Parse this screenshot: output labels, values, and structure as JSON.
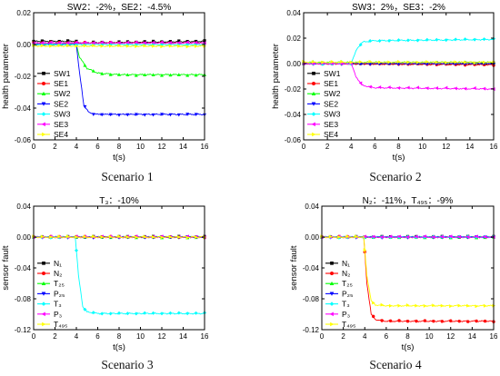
{
  "captions": [
    "Scenario 1",
    "Scenario 2",
    "Scenario 3",
    "Scenario 4"
  ],
  "chart_data": [
    {
      "type": "line",
      "title": "SW2：-2%，SE2：-4.5%",
      "xlabel": "t(s)",
      "ylabel": "health parameter",
      "xlim": [
        0,
        16
      ],
      "ylim": [
        -0.06,
        0.02
      ],
      "xticks": [
        0,
        2,
        4,
        6,
        8,
        10,
        12,
        14,
        16
      ],
      "yticks": [
        0.02,
        0.0,
        -0.02,
        -0.04,
        -0.06
      ],
      "ytick_labels": [
        "0.02",
        "0.00",
        "-0.02",
        "-0.04",
        "-0.06"
      ],
      "grid": false,
      "legend_position": "bottom-left",
      "series": [
        {
          "name": "SW1",
          "color": "#000000",
          "marker": "square",
          "points": [
            [
              0,
              0.002
            ],
            [
              4,
              0.002
            ],
            [
              4.1,
              0.001
            ],
            [
              16,
              0.002
            ]
          ]
        },
        {
          "name": "SE1",
          "color": "#ff0000",
          "marker": "circle",
          "points": [
            [
              0,
              0.001
            ],
            [
              4,
              0.001
            ],
            [
              16,
              0.001
            ]
          ]
        },
        {
          "name": "SW2",
          "color": "#00ff00",
          "marker": "triangle-up",
          "points": [
            [
              0,
              0.0
            ],
            [
              4,
              0.0
            ],
            [
              4.3,
              -0.008
            ],
            [
              5,
              -0.015
            ],
            [
              6,
              -0.018
            ],
            [
              8,
              -0.019
            ],
            [
              16,
              -0.019
            ]
          ]
        },
        {
          "name": "SE2",
          "color": "#0000ff",
          "marker": "triangle-down",
          "points": [
            [
              0,
              0.0
            ],
            [
              4,
              0.0
            ],
            [
              4.3,
              -0.018
            ],
            [
              4.7,
              -0.038
            ],
            [
              5.2,
              -0.043
            ],
            [
              6,
              -0.044
            ],
            [
              16,
              -0.044
            ]
          ]
        },
        {
          "name": "SW3",
          "color": "#00ffff",
          "marker": "diamond",
          "points": [
            [
              0,
              0.0
            ],
            [
              16,
              0.0
            ]
          ]
        },
        {
          "name": "SE3",
          "color": "#ff00ff",
          "marker": "triangle-left",
          "points": [
            [
              0,
              0.001
            ],
            [
              16,
              0.001
            ]
          ]
        },
        {
          "name": "SE4",
          "color": "#ffff00",
          "marker": "triangle-right",
          "points": [
            [
              0,
              -0.001
            ],
            [
              16,
              -0.001
            ]
          ]
        }
      ]
    },
    {
      "type": "line",
      "title": "SW3：2%，SE3：-2%",
      "xlabel": "t(s)",
      "ylabel": "health parameter",
      "xlim": [
        0,
        16
      ],
      "ylim": [
        -0.06,
        0.04
      ],
      "xticks": [
        0,
        2,
        4,
        6,
        8,
        10,
        12,
        14,
        16
      ],
      "yticks": [
        0.04,
        0.02,
        0.0,
        -0.02,
        -0.04,
        -0.06
      ],
      "ytick_labels": [
        "0.04",
        "0.02",
        "0.00",
        "-0.02",
        "-0.04",
        "-0.06"
      ],
      "grid": false,
      "legend_position": "bottom-left",
      "series": [
        {
          "name": "SW1",
          "color": "#000000",
          "marker": "square",
          "points": [
            [
              0,
              0.0
            ],
            [
              16,
              0.0
            ]
          ]
        },
        {
          "name": "SE1",
          "color": "#ff0000",
          "marker": "circle",
          "points": [
            [
              0,
              0.0
            ],
            [
              16,
              -0.001
            ]
          ]
        },
        {
          "name": "SW2",
          "color": "#00ff00",
          "marker": "triangle-up",
          "points": [
            [
              0,
              0.001
            ],
            [
              16,
              0.001
            ]
          ]
        },
        {
          "name": "SE2",
          "color": "#0000ff",
          "marker": "triangle-down",
          "points": [
            [
              0,
              0.0
            ],
            [
              16,
              0.0
            ]
          ]
        },
        {
          "name": "SW3",
          "color": "#00ffff",
          "marker": "diamond",
          "points": [
            [
              0,
              0.0
            ],
            [
              4,
              0.0
            ],
            [
              4.5,
              0.012
            ],
            [
              5,
              0.017
            ],
            [
              6,
              0.018
            ],
            [
              16,
              0.019
            ]
          ]
        },
        {
          "name": "SE3",
          "color": "#ff00ff",
          "marker": "triangle-left",
          "points": [
            [
              0,
              0.0
            ],
            [
              4,
              0.0
            ],
            [
              4.4,
              -0.01
            ],
            [
              4.9,
              -0.017
            ],
            [
              6,
              -0.019
            ],
            [
              16,
              -0.02
            ]
          ]
        },
        {
          "name": "SE4",
          "color": "#ffff00",
          "marker": "triangle-right",
          "points": [
            [
              0,
              0.001
            ],
            [
              16,
              0.001
            ]
          ]
        }
      ]
    },
    {
      "type": "line",
      "title": "T₃：-10%",
      "xlabel": "t(s)",
      "ylabel": "sensor fault",
      "xlim": [
        0,
        16
      ],
      "ylim": [
        -0.12,
        0.04
      ],
      "xticks": [
        0,
        2,
        4,
        6,
        8,
        10,
        12,
        14,
        16
      ],
      "yticks": [
        0.04,
        0.0,
        -0.04,
        -0.08,
        -0.12
      ],
      "ytick_labels": [
        "0.04",
        "0.00",
        "-0.04",
        "-0.08",
        "-0.12"
      ],
      "grid": false,
      "legend_position": "bottom-left",
      "series": [
        {
          "name": "N₁",
          "color": "#000000",
          "marker": "square",
          "points": [
            [
              0,
              0.0
            ],
            [
              16,
              0.0
            ]
          ]
        },
        {
          "name": "N₂",
          "color": "#ff0000",
          "marker": "circle",
          "points": [
            [
              0,
              0.0
            ],
            [
              16,
              0.0
            ]
          ]
        },
        {
          "name": "T₂₅",
          "color": "#00ff00",
          "marker": "triangle-up",
          "points": [
            [
              0,
              0.0
            ],
            [
              16,
              0.0
            ]
          ]
        },
        {
          "name": "P₂₅",
          "color": "#0000ff",
          "marker": "triangle-down",
          "points": [
            [
              0,
              0.0
            ],
            [
              16,
              0.0
            ]
          ]
        },
        {
          "name": "T₃",
          "color": "#00ffff",
          "marker": "diamond",
          "points": [
            [
              0,
              0.0
            ],
            [
              3.9,
              0.0
            ],
            [
              4.2,
              -0.05
            ],
            [
              4.6,
              -0.09
            ],
            [
              5,
              -0.097
            ],
            [
              6,
              -0.099
            ],
            [
              16,
              -0.099
            ]
          ]
        },
        {
          "name": "P₃",
          "color": "#ff00ff",
          "marker": "triangle-left",
          "points": [
            [
              0,
              0.0
            ],
            [
              16,
              0.0
            ]
          ]
        },
        {
          "name": "T₄₉₅",
          "color": "#ffff00",
          "marker": "triangle-right",
          "points": [
            [
              0,
              0.0
            ],
            [
              16,
              0.0
            ]
          ]
        }
      ]
    },
    {
      "type": "line",
      "title": "N₂：-11%，T₄₉₅：-9%",
      "xlabel": "t(s)",
      "ylabel": "sensor fault",
      "xlim": [
        0,
        16
      ],
      "ylim": [
        -0.12,
        0.04
      ],
      "xticks": [
        0,
        2,
        4,
        6,
        8,
        10,
        12,
        14,
        16
      ],
      "yticks": [
        0.04,
        0.0,
        -0.04,
        -0.08,
        -0.12
      ],
      "ytick_labels": [
        "0.04",
        "0.00",
        "-0.04",
        "-0.08",
        "-0.12"
      ],
      "grid": false,
      "legend_position": "bottom-left",
      "series": [
        {
          "name": "N₁",
          "color": "#000000",
          "marker": "square",
          "points": [
            [
              0,
              0.0
            ],
            [
              16,
              0.0
            ]
          ]
        },
        {
          "name": "N₂",
          "color": "#ff0000",
          "marker": "circle",
          "points": [
            [
              0,
              0.0
            ],
            [
              3.9,
              0.0
            ],
            [
              4.2,
              -0.06
            ],
            [
              4.6,
              -0.1
            ],
            [
              5,
              -0.107
            ],
            [
              6,
              -0.109
            ],
            [
              16,
              -0.109
            ]
          ]
        },
        {
          "name": "T₂₅",
          "color": "#00ff00",
          "marker": "triangle-up",
          "points": [
            [
              0,
              0.0
            ],
            [
              16,
              0.0
            ]
          ]
        },
        {
          "name": "P₂₅",
          "color": "#0000ff",
          "marker": "triangle-down",
          "points": [
            [
              0,
              0.0
            ],
            [
              16,
              0.0
            ]
          ]
        },
        {
          "name": "T₃",
          "color": "#00ffff",
          "marker": "diamond",
          "points": [
            [
              0,
              0.0
            ],
            [
              16,
              0.0
            ]
          ]
        },
        {
          "name": "P₃",
          "color": "#ff00ff",
          "marker": "triangle-left",
          "points": [
            [
              0,
              0.0
            ],
            [
              16,
              0.0
            ]
          ]
        },
        {
          "name": "T₄₉₅",
          "color": "#ffff00",
          "marker": "triangle-right",
          "points": [
            [
              0,
              0.0
            ],
            [
              3.9,
              0.0
            ],
            [
              4.2,
              -0.05
            ],
            [
              4.6,
              -0.083
            ],
            [
              5,
              -0.088
            ],
            [
              6,
              -0.089
            ],
            [
              16,
              -0.089
            ]
          ]
        }
      ]
    }
  ]
}
